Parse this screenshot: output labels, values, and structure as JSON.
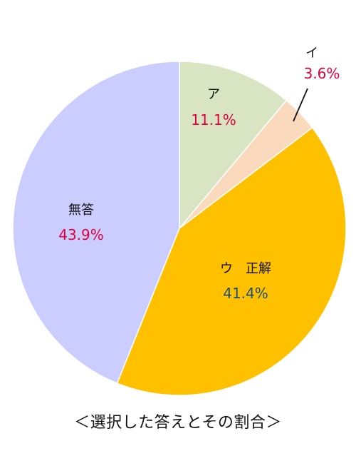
{
  "chart_data": {
    "type": "pie",
    "title": "＜選択した答えとその割合＞",
    "slices": [
      {
        "label": "ア",
        "value": 11.1,
        "value_text": "11.1%",
        "color": "#d9e4c2",
        "text_color": "#e0003a"
      },
      {
        "label": "イ",
        "value": 3.6,
        "value_text": "3.6%",
        "color": "#fad9bd",
        "text_color": "#e0003a"
      },
      {
        "label": "ウ　正解",
        "value": 41.4,
        "value_text": "41.4%",
        "color": "#ffc000",
        "text_color": "#1f4e79"
      },
      {
        "label": "無答",
        "value": 43.9,
        "value_text": "43.9%",
        "color": "#cccdff",
        "text_color": "#e0003a"
      }
    ],
    "start_angle": "top",
    "direction": "clockwise",
    "legend": "none"
  }
}
